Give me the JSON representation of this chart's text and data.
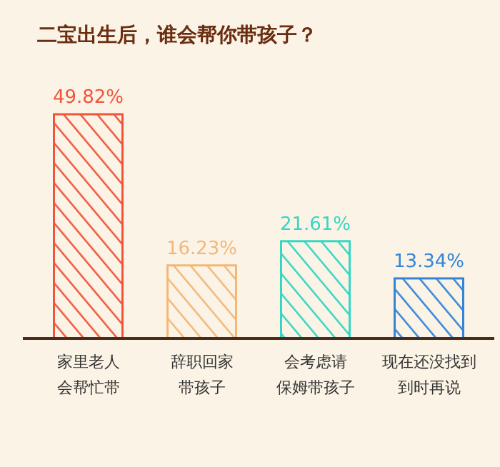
{
  "chart_data": {
    "type": "bar",
    "title": "二宝出生后，谁会帮你带孩子？",
    "categories": [
      "家里老人会帮忙带",
      "辞职回家带孩子",
      "会考虑请保姆带孩子",
      "现在还没找到到时再说"
    ],
    "values": [
      49.82,
      16.23,
      21.61,
      13.34
    ],
    "colors": [
      "#f0553c",
      "#f3b779",
      "#35d6c3",
      "#3484d8"
    ],
    "value_labels": [
      "49.82%",
      "16.23%",
      "21.61%",
      "13.34%"
    ]
  }
}
